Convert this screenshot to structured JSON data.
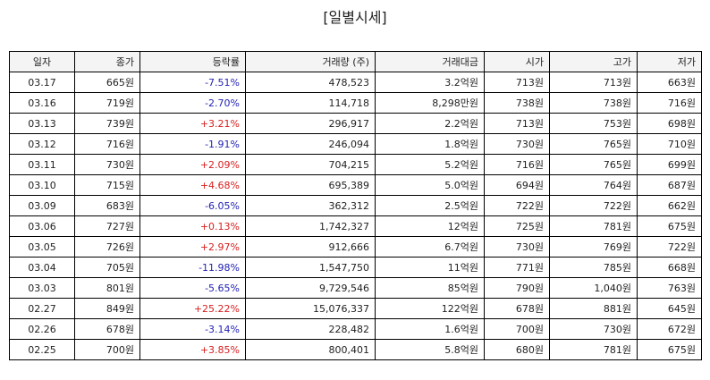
{
  "title": "[일별시세]",
  "columns": [
    "일자",
    "종가",
    "등락률",
    "거래량 (주)",
    "거래대금",
    "시가",
    "고가",
    "저가"
  ],
  "colors": {
    "up": "#d62020",
    "down": "#2323b4"
  },
  "rows": [
    {
      "date": "03.17",
      "close": "665원",
      "change": "-7.51%",
      "dir": "down",
      "volume": "478,523",
      "amount": "3.2억원",
      "open": "713원",
      "high": "713원",
      "low": "663원"
    },
    {
      "date": "03.16",
      "close": "719원",
      "change": "-2.70%",
      "dir": "down",
      "volume": "114,718",
      "amount": "8,298만원",
      "open": "738원",
      "high": "738원",
      "low": "716원"
    },
    {
      "date": "03.13",
      "close": "739원",
      "change": "+3.21%",
      "dir": "up",
      "volume": "296,917",
      "amount": "2.2억원",
      "open": "713원",
      "high": "753원",
      "low": "698원"
    },
    {
      "date": "03.12",
      "close": "716원",
      "change": "-1.91%",
      "dir": "down",
      "volume": "246,094",
      "amount": "1.8억원",
      "open": "730원",
      "high": "765원",
      "low": "710원"
    },
    {
      "date": "03.11",
      "close": "730원",
      "change": "+2.09%",
      "dir": "up",
      "volume": "704,215",
      "amount": "5.2억원",
      "open": "716원",
      "high": "765원",
      "low": "699원"
    },
    {
      "date": "03.10",
      "close": "715원",
      "change": "+4.68%",
      "dir": "up",
      "volume": "695,389",
      "amount": "5.0억원",
      "open": "694원",
      "high": "764원",
      "low": "687원"
    },
    {
      "date": "03.09",
      "close": "683원",
      "change": "-6.05%",
      "dir": "down",
      "volume": "362,312",
      "amount": "2.5억원",
      "open": "722원",
      "high": "722원",
      "low": "662원"
    },
    {
      "date": "03.06",
      "close": "727원",
      "change": "+0.13%",
      "dir": "up",
      "volume": "1,742,327",
      "amount": "12억원",
      "open": "725원",
      "high": "781원",
      "low": "675원"
    },
    {
      "date": "03.05",
      "close": "726원",
      "change": "+2.97%",
      "dir": "up",
      "volume": "912,666",
      "amount": "6.7억원",
      "open": "730원",
      "high": "769원",
      "low": "722원"
    },
    {
      "date": "03.04",
      "close": "705원",
      "change": "-11.98%",
      "dir": "down",
      "volume": "1,547,750",
      "amount": "11억원",
      "open": "771원",
      "high": "785원",
      "low": "668원"
    },
    {
      "date": "03.03",
      "close": "801원",
      "change": "-5.65%",
      "dir": "down",
      "volume": "9,729,546",
      "amount": "85억원",
      "open": "790원",
      "high": "1,040원",
      "low": "763원"
    },
    {
      "date": "02.27",
      "close": "849원",
      "change": "+25.22%",
      "dir": "up",
      "volume": "15,076,337",
      "amount": "122억원",
      "open": "678원",
      "high": "881원",
      "low": "645원"
    },
    {
      "date": "02.26",
      "close": "678원",
      "change": "-3.14%",
      "dir": "down",
      "volume": "228,482",
      "amount": "1.6억원",
      "open": "700원",
      "high": "730원",
      "low": "672원"
    },
    {
      "date": "02.25",
      "close": "700원",
      "change": "+3.85%",
      "dir": "up",
      "volume": "800,401",
      "amount": "5.8억원",
      "open": "680원",
      "high": "781원",
      "low": "675원"
    }
  ]
}
